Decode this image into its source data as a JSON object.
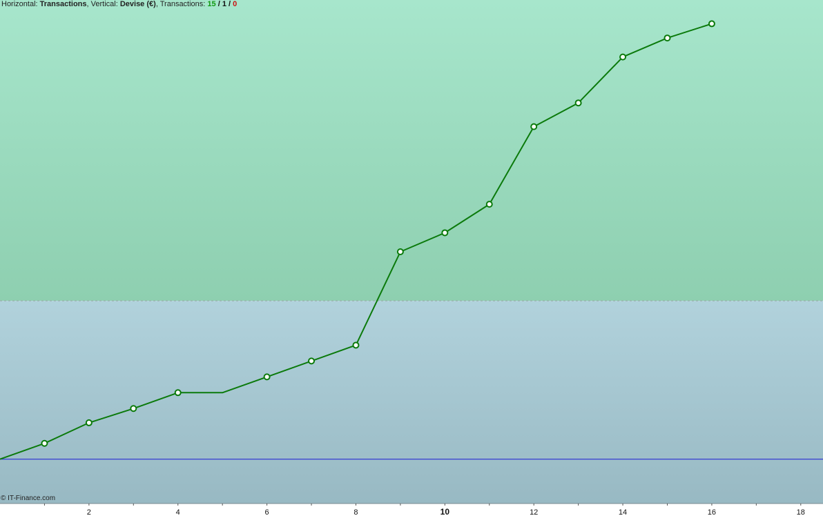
{
  "header": {
    "horizontal_label": "Horizontal:",
    "horizontal_value": "Transactions",
    "vertical_label": "Vertical:",
    "vertical_value": "Devise (€)",
    "transactions_label": "Transactions:",
    "count_winning": "15",
    "count_flat": "1",
    "count_losing": "0",
    "separator": "/"
  },
  "footer": {
    "copyright": "© IT-Finance.com"
  },
  "colors": {
    "profit_zone_top": "#a7e6cc",
    "profit_zone_bottom": "#8ecfb0",
    "loss_zone_top": "#b1d2dc",
    "loss_zone_bottom": "#98b9c3",
    "equity_line": "#0b7a0b",
    "zero_line": "#1a1ad6",
    "threshold_line": "#9aa9a5",
    "axis_text": "#111111"
  },
  "chart_data": {
    "type": "line",
    "title": "",
    "xlabel": "Transactions",
    "ylabel": "Devise (€)",
    "xlim": [
      0,
      18.5
    ],
    "ylim": [
      -2.8,
      29
    ],
    "x_ticks": [
      {
        "value": 2,
        "label": "2",
        "bold": false
      },
      {
        "value": 4,
        "label": "4",
        "bold": false
      },
      {
        "value": 6,
        "label": "6",
        "bold": false
      },
      {
        "value": 8,
        "label": "8",
        "bold": false
      },
      {
        "value": 10,
        "label": "10",
        "bold": true
      },
      {
        "value": 12,
        "label": "12",
        "bold": false
      },
      {
        "value": 14,
        "label": "14",
        "bold": false
      },
      {
        "value": 16,
        "label": "16",
        "bold": false
      },
      {
        "value": 18,
        "label": "18",
        "bold": false
      }
    ],
    "zero_level": 0,
    "threshold_level": 10,
    "grid": false,
    "series": [
      {
        "x": [
          0,
          1,
          2,
          3,
          4,
          5,
          6,
          7,
          8,
          9,
          10,
          11,
          12,
          13,
          14,
          15,
          16
        ],
        "values": [
          0,
          1.0,
          2.3,
          3.2,
          4.2,
          4.2,
          5.2,
          6.2,
          7.2,
          13.1,
          14.3,
          16.1,
          21.0,
          22.5,
          25.4,
          26.6,
          27.5
        ],
        "markers": [
          false,
          true,
          true,
          true,
          true,
          false,
          true,
          true,
          true,
          true,
          true,
          true,
          true,
          true,
          true,
          true,
          true
        ]
      }
    ]
  }
}
